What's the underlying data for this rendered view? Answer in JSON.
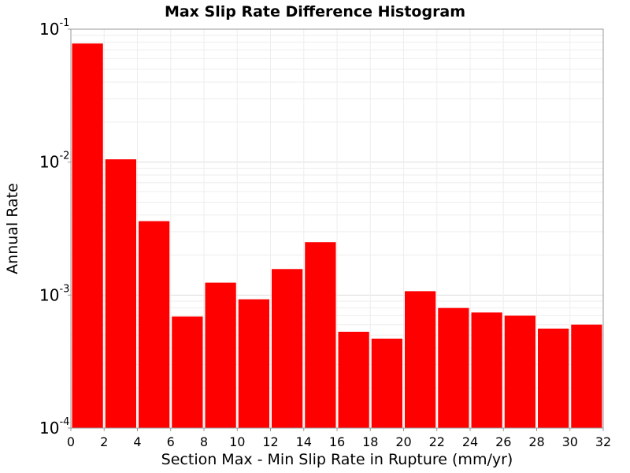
{
  "chart_data": {
    "type": "bar",
    "title": "Max Slip Rate Difference Histogram",
    "xlabel": "Section Max - Min Slip Rate in Rupture (mm/yr)",
    "ylabel": "Annual Rate",
    "yscale": "log",
    "xlim": [
      0,
      32
    ],
    "ylim": [
      0.0001,
      0.1
    ],
    "grid": true,
    "bar_color": "#ff0000",
    "bin_width": 2,
    "bin_starts": [
      0,
      2,
      4,
      6,
      8,
      10,
      12,
      14,
      16,
      18,
      20,
      22,
      24,
      26,
      28,
      30
    ],
    "values": [
      0.078,
      0.0105,
      0.0036,
      0.00069,
      0.00124,
      0.00093,
      0.00157,
      0.0025,
      0.00053,
      0.00047,
      0.00107,
      0.0008,
      0.00074,
      0.0007,
      0.00056,
      0.0006
    ],
    "xticks": [
      "0",
      "2",
      "4",
      "6",
      "8",
      "10",
      "12",
      "14",
      "16",
      "18",
      "20",
      "22",
      "24",
      "26",
      "28",
      "30",
      "32"
    ],
    "yticks": [
      {
        "value": 0.0001,
        "base": "10",
        "exp": "-4"
      },
      {
        "value": 0.001,
        "base": "10",
        "exp": "-3"
      },
      {
        "value": 0.01,
        "base": "10",
        "exp": "-2"
      },
      {
        "value": 0.1,
        "base": "10",
        "exp": "-1"
      }
    ]
  }
}
